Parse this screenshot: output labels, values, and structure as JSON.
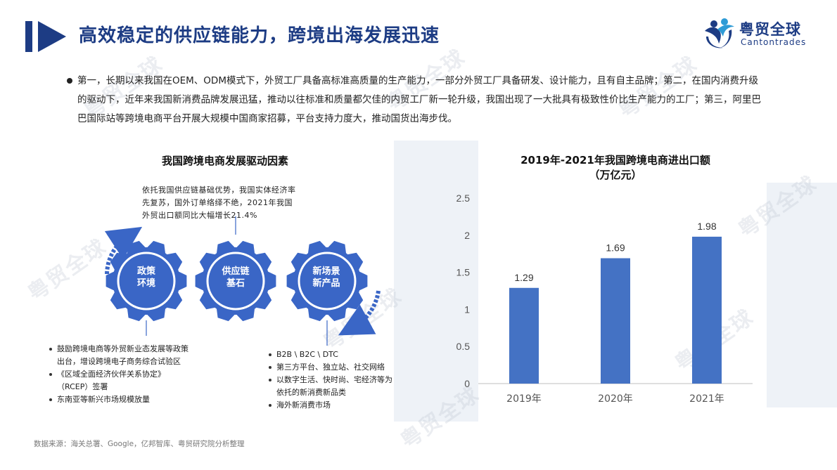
{
  "header": {
    "title": "高效稳定的供应链能力，跨境出海发展迅速"
  },
  "logo": {
    "name_cn": "粤贸全球",
    "name_en": "Cantontrades"
  },
  "watermark": {
    "text": "粤贸全球"
  },
  "intro": {
    "text": "第一，长期以来我国在OEM、ODM模式下，外贸工厂具备高标准高质量的生产能力，一部分外贸工厂具备研发、设计能力，且有自主品牌；第二，在国内消费升级的驱动下，近年来我国新消费品牌发展迅猛，推动以往标准和质量都欠佳的内贸工厂新一轮升级，我国出现了一大批具有极致性价比生产能力的工厂；第三，阿里巴巴国际站等跨境电商平台开展大规模中国商家招募，平台支持力度大，推动国货出海步伐。"
  },
  "drivers": {
    "title": "我国跨境电商发展驱动因素",
    "top_note": "依托我国供应链基础优势，我国实体经济率先复苏，国外订单络绎不绝，2021年我国外贸出口额同比大幅增长21.4%",
    "gears": [
      {
        "label_line1": "政策",
        "label_line2": "环境"
      },
      {
        "label_line1": "供应链",
        "label_line2": "基石"
      },
      {
        "label_line1": "新场景",
        "label_line2": "新产品"
      }
    ],
    "left_list": [
      "鼓励跨境电商等外贸新业态发展等政策",
      "出台，增设跨境电子商务综合试验区",
      "《区域全面经济伙伴关系协定》",
      "（RCEP）签署",
      "东南亚等新兴市场规模放量"
    ],
    "right_list": [
      "B2B \\ B2C \\ DTC",
      "第三方平台、独立站、社交网络",
      "以数字生活、快时尚、宅经济等为",
      "依托的新消费新品类",
      "海外新消费市场"
    ],
    "colors": {
      "gear": "#3a66c6",
      "arrow": "#3a66c6"
    }
  },
  "chart_data": {
    "type": "bar",
    "title": "2019年-2021年我国跨境电商进出口额",
    "subtitle": "（万亿元）",
    "categories": [
      "2019年",
      "2020年",
      "2021年"
    ],
    "values": [
      1.29,
      1.69,
      1.98
    ],
    "value_labels": [
      "1.29",
      "1.69",
      "1.98"
    ],
    "ylim": [
      0,
      2.5
    ],
    "yticks": [
      0,
      0.5,
      1,
      1.5,
      2,
      2.5
    ],
    "ytick_labels": [
      "0",
      "0.5",
      "1",
      "1.5",
      "2",
      "2.5"
    ],
    "xlabel": "",
    "ylabel": "",
    "grid": false,
    "bar_color": "#4472c4"
  },
  "source": {
    "text": "数据来源：海关总署、Google，亿邦智库、粤贸研究院分析整理"
  },
  "colors": {
    "title": "#1d3c84",
    "accent": "#1d3c84",
    "bar": "#4472c4"
  }
}
